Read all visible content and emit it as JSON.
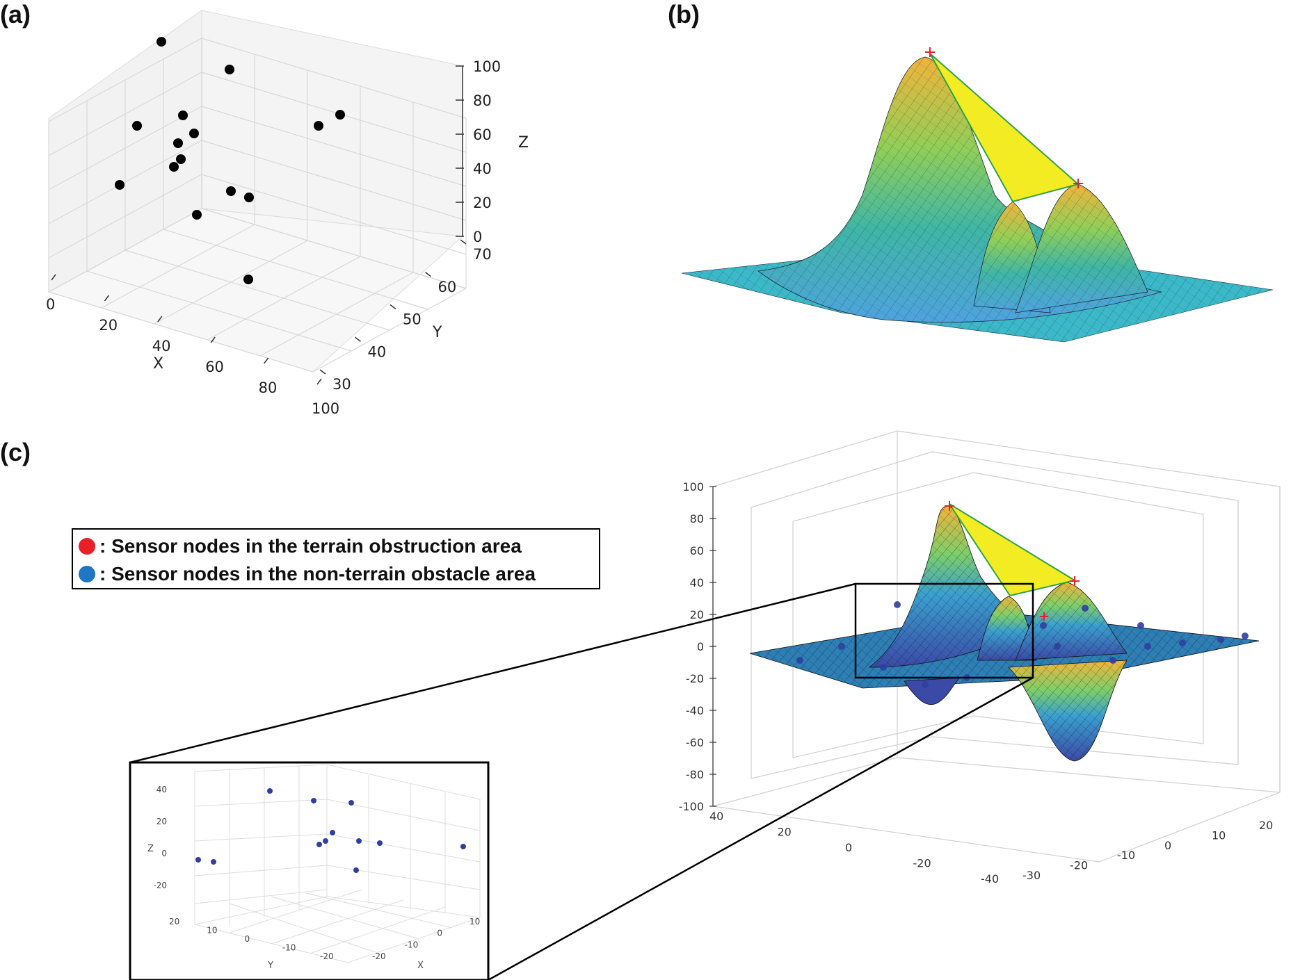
{
  "panels": {
    "a": "(a)",
    "b": "(b)",
    "c": "(c)"
  },
  "legend": {
    "items": [
      {
        "marker": ":",
        "label": "Sensor nodes in the terrain obstruction area",
        "color": "#e8202a"
      },
      {
        "marker": ":",
        "label": "Sensor nodes in the non-terrain obstacle area",
        "color": "#1f77c4"
      }
    ]
  },
  "chart_data": [
    {
      "id": "a",
      "type": "scatter",
      "projection": "3d",
      "xlabel": "X",
      "ylabel": "Y",
      "zlabel": "Z",
      "xlim": [
        0,
        100
      ],
      "ylim": [
        30,
        70
      ],
      "zlim": [
        0,
        100
      ],
      "xticks": [
        "0",
        "20",
        "40",
        "60",
        "80",
        "100"
      ],
      "yticks": [
        "30",
        "40",
        "50",
        "60",
        "70"
      ],
      "zticks": [
        "0",
        "20",
        "40",
        "60",
        "80",
        "100"
      ],
      "marker_color": "#000000",
      "points": [
        {
          "x": 5,
          "y": 57,
          "z": 90
        },
        {
          "x": 33,
          "y": 62,
          "z": 85
        },
        {
          "x": 10,
          "y": 45,
          "z": 60
        },
        {
          "x": 22,
          "y": 55,
          "z": 58
        },
        {
          "x": 25,
          "y": 52,
          "z": 50
        },
        {
          "x": 20,
          "y": 52,
          "z": 40
        },
        {
          "x": 20,
          "y": 50,
          "z": 30
        },
        {
          "x": 18,
          "y": 50,
          "z": 25
        },
        {
          "x": 5,
          "y": 40,
          "z": 20
        },
        {
          "x": 55,
          "y": 55,
          "z": 20
        },
        {
          "x": 60,
          "y": 55,
          "z": 15
        },
        {
          "x": 45,
          "y": 45,
          "z": 10
        },
        {
          "x": 88,
          "y": 62,
          "z": 72
        },
        {
          "x": 90,
          "y": 64,
          "z": 80
        },
        {
          "x": 85,
          "y": 40,
          "z": 5
        }
      ]
    },
    {
      "id": "b",
      "type": "surface",
      "description": "3D terrain surface with three peaks",
      "peaks": [
        {
          "height": 85
        },
        {
          "height": 38
        },
        {
          "height": 48
        }
      ]
    },
    {
      "id": "c",
      "type": "surface",
      "zlim": [
        -100,
        100
      ],
      "zticks": [
        "100",
        "80",
        "60",
        "40",
        "20",
        "0",
        "-20",
        "-40",
        "-60",
        "-80",
        "-100"
      ],
      "xticks": [
        "40",
        "20",
        "0",
        "-20",
        "-40"
      ],
      "yticks": [
        "-30",
        "-20",
        "-10",
        "0",
        "10",
        "20"
      ],
      "inset": {
        "type": "scatter",
        "projection": "3d",
        "xlabel": "X",
        "ylabel": "Y",
        "zlabel": "Z",
        "zticks": [
          "40",
          "20",
          "0",
          "-20"
        ],
        "yticks": [
          "20",
          "10",
          "0",
          "-10",
          "-20"
        ],
        "xticks": [
          "-20",
          "-10",
          "0",
          "10"
        ],
        "marker_color": "#2f3fa0",
        "points": [
          {
            "x": -5,
            "y": 5,
            "z": 40
          },
          {
            "x": 2,
            "y": -2,
            "z": 33
          },
          {
            "x": 8,
            "y": -5,
            "z": 32
          },
          {
            "x": 4,
            "y": -4,
            "z": 13
          },
          {
            "x": 3,
            "y": -3,
            "z": 8
          },
          {
            "x": 3,
            "y": -2,
            "z": 5
          },
          {
            "x": 8,
            "y": -8,
            "z": 8
          },
          {
            "x": 10,
            "y": -10,
            "z": 6
          },
          {
            "x": -18,
            "y": 18,
            "z": -1
          },
          {
            "x": -15,
            "y": 15,
            "z": -2
          },
          {
            "x": 15,
            "y": -20,
            "z": 5
          },
          {
            "x": 5,
            "y": -8,
            "z": -12
          }
        ]
      }
    }
  ]
}
